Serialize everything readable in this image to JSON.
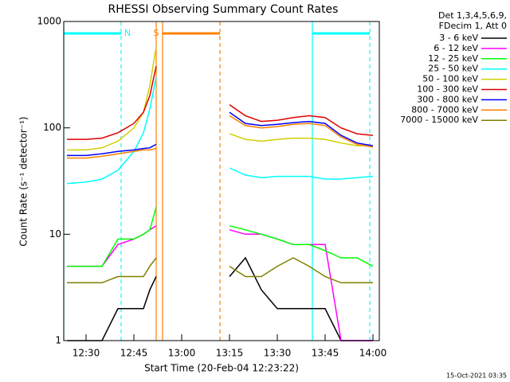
{
  "chart_data": {
    "type": "line",
    "title": "RHESSI Observing Summary Count Rates",
    "xlabel": "Start Time (20-Feb-04 12:23:22)",
    "ylabel": "Count Rate (s⁻¹ detector⁻¹)",
    "legend_header": [
      "Det 1,3,4,5,6,9,",
      "FDecim 1, Att 0"
    ],
    "footer": "15-Oct-2021 03:35",
    "log_y": true,
    "legend": "right",
    "x": [
      "12:24",
      "12:30",
      "12:35",
      "12:40",
      "12:45",
      "12:48",
      "12:50",
      "12:52",
      "13:00",
      "13:15",
      "13:20",
      "13:25",
      "13:30",
      "13:35",
      "13:40",
      "13:45",
      "13:50",
      "13:55",
      "14:00"
    ],
    "xlim": [
      "12:23",
      "14:02"
    ],
    "xticks": [
      "12:30",
      "12:45",
      "13:00",
      "13:15",
      "13:30",
      "13:45",
      "14:00"
    ],
    "ylim": [
      1,
      1000
    ],
    "yticks": [
      1,
      10,
      100,
      1000
    ],
    "series": [
      {
        "name": "3 - 6 keV",
        "color": "#000000",
        "values": [
          1,
          1,
          1,
          2,
          2,
          2,
          3,
          4,
          null,
          4,
          6,
          3,
          2,
          2,
          2,
          2,
          1,
          1,
          1
        ]
      },
      {
        "name": "6 - 12 keV",
        "color": "#ff00ff",
        "values": [
          5,
          5,
          5,
          8,
          9,
          10,
          11,
          12,
          null,
          11,
          10,
          10,
          9,
          8,
          8,
          8,
          1,
          1,
          1
        ]
      },
      {
        "name": "12 - 25 keV",
        "color": "#00ff00",
        "values": [
          5,
          5,
          5,
          9,
          9,
          10,
          11,
          18,
          null,
          12,
          11,
          10,
          9,
          8,
          8,
          7,
          6,
          6,
          5
        ]
      },
      {
        "name": "25 - 50 keV",
        "color": "#00ffff",
        "values": [
          30,
          31,
          33,
          40,
          60,
          90,
          150,
          300,
          null,
          42,
          36,
          34,
          35,
          35,
          35,
          33,
          33,
          34,
          35
        ]
      },
      {
        "name": "50 - 100 keV",
        "color": "#d0d000",
        "values": [
          62,
          62,
          65,
          75,
          100,
          140,
          250,
          580,
          null,
          88,
          78,
          75,
          78,
          80,
          80,
          78,
          72,
          68,
          68
        ]
      },
      {
        "name": "100 - 300 keV",
        "color": "#e00000",
        "values": [
          78,
          78,
          80,
          90,
          110,
          140,
          200,
          380,
          null,
          165,
          130,
          115,
          118,
          125,
          130,
          125,
          100,
          88,
          85
        ]
      },
      {
        "name": "300 - 800 keV",
        "color": "#0000ff",
        "values": [
          55,
          55,
          57,
          60,
          62,
          64,
          65,
          70,
          null,
          140,
          110,
          105,
          108,
          112,
          115,
          110,
          85,
          72,
          68
        ]
      },
      {
        "name": "800 - 7000 keV",
        "color": "#ff8000",
        "values": [
          52,
          52,
          54,
          57,
          60,
          62,
          62,
          64,
          null,
          130,
          105,
          100,
          103,
          108,
          110,
          105,
          82,
          70,
          66
        ]
      },
      {
        "name": "7000 - 15000 keV",
        "color": "#808000",
        "values": [
          3.5,
          3.5,
          3.5,
          4,
          4,
          4,
          5,
          6,
          null,
          5,
          4,
          4,
          5,
          6,
          5,
          4,
          3.5,
          3.5,
          3.5
        ]
      }
    ],
    "vlines": [
      {
        "x": "12:23",
        "color": "#00ffff",
        "dashed": false
      },
      {
        "x": "12:41",
        "color": "#00ffff",
        "dashed": true
      },
      {
        "x": "12:52",
        "color": "#ff8000",
        "dashed": false
      },
      {
        "x": "12:54",
        "color": "#ff8000",
        "dashed": false
      },
      {
        "x": "13:12",
        "color": "#ff8000",
        "dashed": true
      },
      {
        "x": "13:41",
        "color": "#00ffff",
        "dashed": false
      },
      {
        "x": "13:59",
        "color": "#00ffff",
        "dashed": true
      }
    ],
    "intervals": [
      {
        "x": [
          "12:23",
          "12:41"
        ],
        "color": "#00ffff"
      },
      {
        "x": [
          "12:54",
          "13:12"
        ],
        "color": "#ff8000"
      },
      {
        "x": [
          "13:41",
          "13:59"
        ],
        "color": "#00ffff"
      }
    ],
    "annotations": [
      {
        "label": "N",
        "x": "12:43",
        "color": "#00ffff"
      },
      {
        "label": "S",
        "x": "12:52",
        "color": "#ff8000"
      }
    ]
  }
}
